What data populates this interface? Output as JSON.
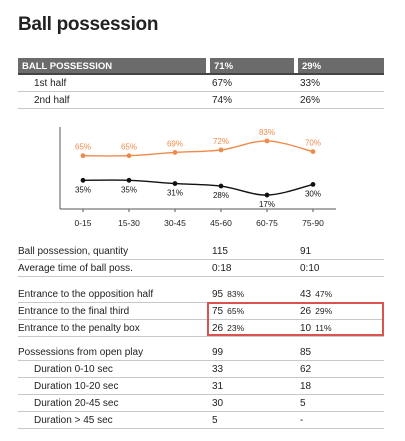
{
  "title": "Ball possession",
  "header": {
    "label": "BALL POSSESSION",
    "team1": "71%",
    "team2": "29%"
  },
  "halves": [
    {
      "label": "1st half",
      "team1": "67%",
      "team2": "33%"
    },
    {
      "label": "2nd half",
      "team1": "74%",
      "team2": "26%"
    }
  ],
  "colors": {
    "team1": "#f08a4b",
    "team2": "#111111",
    "header_bg": "#6b6b6b",
    "highlight": "#d9534f"
  },
  "chart_data": {
    "type": "line",
    "categories": [
      "0-15",
      "15-30",
      "30-45",
      "45-60",
      "60-75",
      "75-90"
    ],
    "series": [
      {
        "values": [
          65,
          65,
          69,
          72,
          83,
          70
        ],
        "labels": [
          "65%",
          "65%",
          "69%",
          "72%",
          "83%",
          "70%"
        ]
      },
      {
        "values": [
          35,
          35,
          31,
          28,
          17,
          30
        ],
        "labels": [
          "35%",
          "35%",
          "31%",
          "28%",
          "17%",
          "30%"
        ]
      }
    ],
    "ylim": [
      0,
      100
    ]
  },
  "stats1": [
    {
      "label": "Ball possession, quantity",
      "team1": "115",
      "team2": "91"
    },
    {
      "label": "Average time of ball poss.",
      "team1": "0:18",
      "team2": "0:10"
    }
  ],
  "stats2": [
    {
      "label": "Entrance to the opposition half",
      "team1": "95",
      "team1_pct": "83%",
      "team2": "43",
      "team2_pct": "47%"
    },
    {
      "label": "Entrance to the final third",
      "team1": "75",
      "team1_pct": "65%",
      "team2": "26",
      "team2_pct": "29%"
    },
    {
      "label": "Entrance to the penalty box",
      "team1": "26",
      "team1_pct": "23%",
      "team2": "10",
      "team2_pct": "11%"
    }
  ],
  "stats3": [
    {
      "label": "Possessions from open play",
      "team1": "99",
      "team2": "85"
    },
    {
      "label": "Duration  0-10 sec",
      "team1": "33",
      "team2": "62"
    },
    {
      "label": "Duration  10-20 sec",
      "team1": "31",
      "team2": "18"
    },
    {
      "label": "Duration  20-45 sec",
      "team1": "30",
      "team2": "5"
    },
    {
      "label": "Duration  > 45 sec",
      "team1": "5",
      "team2": "-"
    }
  ]
}
